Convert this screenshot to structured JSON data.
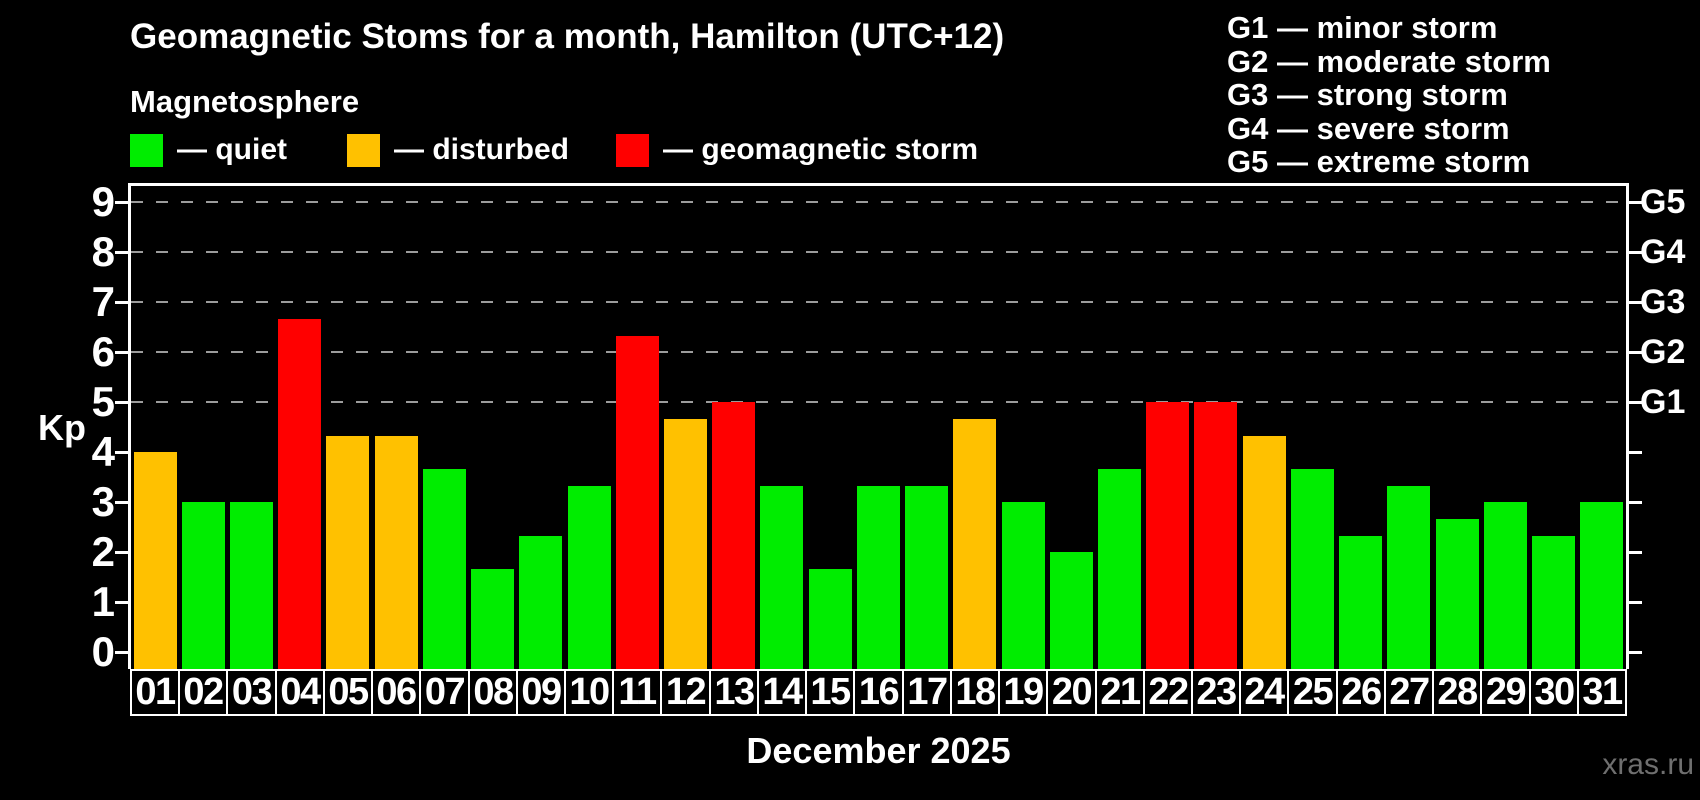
{
  "header": {
    "title": "Geomagnetic Stoms for a month, Hamilton (UTC+12)",
    "subtitle": "Magnetosphere"
  },
  "legend": {
    "items": [
      {
        "key": "quiet",
        "label": "— quiet"
      },
      {
        "key": "disturbed",
        "label": "— disturbed"
      },
      {
        "key": "storm",
        "label": "— geomagnetic storm"
      }
    ]
  },
  "g_legend": {
    "items": [
      "G1 — minor storm",
      "G2 — moderate storm",
      "G3 — strong storm",
      "G4 — severe storm",
      "G5 — extreme storm"
    ]
  },
  "watermark": "xras.ru",
  "chart_data": {
    "type": "bar",
    "title": "Geomagnetic Stoms for a month, Hamilton (UTC+12)",
    "subtitle": "Magnetosphere",
    "xlabel": "December 2025",
    "ylabel": "Kp",
    "ylim": [
      0,
      9.5
    ],
    "grid": "dashed horizontal lines at Kp 5-9 only",
    "legend_position": "top",
    "y_ticks": [
      0,
      1,
      2,
      3,
      4,
      5,
      6,
      7,
      8,
      9
    ],
    "grid_levels_kp": [
      5,
      6,
      7,
      8,
      9
    ],
    "right_axis": [
      {
        "label": "G1",
        "kp": 5
      },
      {
        "label": "G2",
        "kp": 6
      },
      {
        "label": "G3",
        "kp": 7
      },
      {
        "label": "G4",
        "kp": 8
      },
      {
        "label": "G5",
        "kp": 9
      }
    ],
    "categories": [
      "01",
      "02",
      "03",
      "04",
      "05",
      "06",
      "07",
      "08",
      "09",
      "10",
      "11",
      "12",
      "13",
      "14",
      "15",
      "16",
      "17",
      "18",
      "19",
      "20",
      "21",
      "22",
      "23",
      "24",
      "25",
      "26",
      "27",
      "28",
      "29",
      "30",
      "31"
    ],
    "values": [
      4.0,
      3.0,
      3.0,
      6.67,
      4.33,
      4.33,
      3.67,
      1.67,
      2.33,
      3.33,
      6.33,
      4.67,
      5.0,
      3.33,
      1.67,
      3.33,
      3.33,
      4.67,
      3.0,
      2.0,
      3.67,
      5.0,
      5.0,
      4.33,
      3.67,
      2.33,
      3.33,
      2.67,
      3.0,
      2.33,
      3.0
    ],
    "statuses": [
      "disturbed",
      "quiet",
      "quiet",
      "storm",
      "disturbed",
      "disturbed",
      "quiet",
      "quiet",
      "quiet",
      "quiet",
      "storm",
      "disturbed",
      "storm",
      "quiet",
      "quiet",
      "quiet",
      "quiet",
      "disturbed",
      "quiet",
      "quiet",
      "quiet",
      "storm",
      "storm",
      "disturbed",
      "quiet",
      "quiet",
      "quiet",
      "quiet",
      "quiet",
      "quiet",
      "quiet"
    ],
    "colors": {
      "quiet": "#00ed00",
      "disturbed": "#ffc100",
      "storm": "#ff0000"
    }
  }
}
